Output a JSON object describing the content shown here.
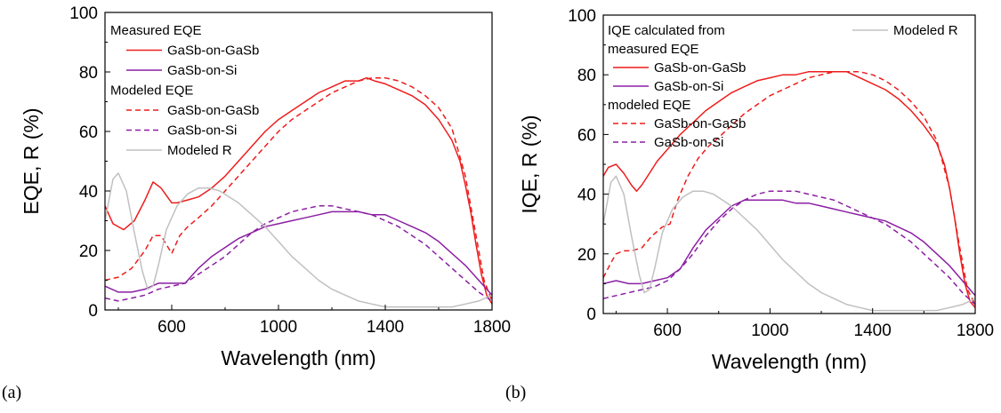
{
  "chart_data": [
    {
      "type": "line",
      "panel_label": "(a)",
      "xlabel": "Wavelength (nm)",
      "ylabel": "EQE, R (%)",
      "xlim": [
        350,
        1800
      ],
      "ylim": [
        0,
        100
      ],
      "xticks": [
        600,
        1000,
        1400,
        1800
      ],
      "yticks": [
        0,
        20,
        40,
        60,
        80,
        100
      ],
      "legend_position": "top-left",
      "legend": [
        {
          "type": "header",
          "text": "Measured EQE"
        },
        {
          "type": "entry",
          "series": 0,
          "text": "GaSb-on-GaSb"
        },
        {
          "type": "entry",
          "series": 1,
          "text": "GaSb-on-Si"
        },
        {
          "type": "header",
          "text": "Modeled EQE"
        },
        {
          "type": "entry",
          "series": 2,
          "text": "GaSb-on-GaSb"
        },
        {
          "type": "entry",
          "series": 3,
          "text": "GaSb-on-Si"
        },
        {
          "type": "entry",
          "series": 4,
          "text": "Modeled R"
        }
      ],
      "series": [
        {
          "name": "GaSb-on-GaSb",
          "color": "#ee1c1c",
          "dash": "solid",
          "x": [
            350,
            380,
            420,
            460,
            500,
            530,
            560,
            600,
            620,
            660,
            700,
            750,
            800,
            850,
            900,
            950,
            1000,
            1050,
            1100,
            1150,
            1200,
            1250,
            1300,
            1330,
            1360,
            1400,
            1450,
            1500,
            1550,
            1600,
            1650,
            1680,
            1700,
            1720,
            1740,
            1760,
            1780,
            1800
          ],
          "y": [
            35,
            29,
            27,
            30,
            37,
            43,
            41,
            36,
            36,
            37,
            38,
            41,
            45,
            50,
            55,
            60,
            64,
            67,
            70,
            73,
            75,
            77,
            77,
            78,
            77,
            76,
            74,
            72,
            69,
            64,
            57,
            50,
            42,
            33,
            22,
            12,
            5,
            2
          ]
        },
        {
          "name": "GaSb-on-Si",
          "color": "#8b1fa3",
          "dash": "solid",
          "x": [
            350,
            400,
            450,
            500,
            550,
            600,
            650,
            700,
            750,
            800,
            850,
            900,
            950,
            1000,
            1050,
            1100,
            1150,
            1200,
            1250,
            1300,
            1350,
            1400,
            1450,
            1500,
            1550,
            1600,
            1650,
            1700,
            1750,
            1800
          ],
          "y": [
            8,
            6,
            6,
            7,
            9,
            9,
            9,
            14,
            18,
            21,
            24,
            26,
            28,
            29,
            30,
            31,
            32,
            33,
            33,
            33,
            32,
            32,
            30,
            28,
            26,
            23,
            19,
            15,
            10,
            5
          ]
        },
        {
          "name": "GaSb-on-GaSb",
          "color": "#ee1c1c",
          "dash": "dashed",
          "x": [
            350,
            400,
            450,
            500,
            530,
            560,
            600,
            630,
            660,
            700,
            750,
            800,
            850,
            900,
            950,
            1000,
            1050,
            1100,
            1150,
            1200,
            1250,
            1300,
            1350,
            1400,
            1450,
            1500,
            1550,
            1600,
            1650,
            1700,
            1740,
            1770,
            1800
          ],
          "y": [
            10,
            11,
            14,
            20,
            25,
            25,
            19,
            25,
            28,
            31,
            35,
            40,
            45,
            50,
            55,
            60,
            64,
            67,
            70,
            73,
            75,
            77,
            78,
            78,
            77,
            75,
            72,
            68,
            61,
            45,
            25,
            10,
            3
          ]
        },
        {
          "name": "GaSb-on-Si",
          "color": "#8b1fa3",
          "dash": "dashed",
          "x": [
            350,
            400,
            450,
            500,
            550,
            600,
            650,
            700,
            750,
            800,
            850,
            900,
            950,
            1000,
            1050,
            1100,
            1150,
            1200,
            1250,
            1300,
            1350,
            1400,
            1450,
            1500,
            1550,
            1600,
            1650,
            1700,
            1750,
            1800
          ],
          "y": [
            4,
            3,
            4,
            5,
            7,
            8,
            9,
            12,
            15,
            18,
            22,
            26,
            29,
            31,
            33,
            34,
            35,
            35,
            34,
            33,
            32,
            30,
            28,
            25,
            22,
            18,
            14,
            10,
            6,
            3
          ]
        },
        {
          "name": "Modeled R",
          "color": "#c0c0c0",
          "dash": "solid",
          "x": [
            350,
            380,
            400,
            430,
            460,
            490,
            510,
            530,
            550,
            580,
            620,
            660,
            700,
            740,
            780,
            850,
            900,
            950,
            1000,
            1050,
            1100,
            1150,
            1200,
            1250,
            1300,
            1350,
            1400,
            1450,
            1500,
            1550,
            1600,
            1650,
            1700,
            1750,
            1800
          ],
          "y": [
            30,
            44,
            46,
            40,
            26,
            13,
            7,
            8,
            15,
            27,
            35,
            39,
            41,
            41,
            40,
            36,
            32,
            28,
            23,
            18,
            14,
            10,
            7,
            5,
            3,
            2,
            1,
            1,
            1,
            1,
            1,
            1,
            2,
            3,
            5
          ]
        }
      ]
    },
    {
      "type": "line",
      "panel_label": "(b)",
      "xlabel": "Wavelength (nm)",
      "ylabel": "IQE, R (%)",
      "xlim": [
        350,
        1800
      ],
      "ylim": [
        0,
        100
      ],
      "xticks": [
        600,
        1000,
        1400,
        1800
      ],
      "yticks": [
        0,
        20,
        40,
        60,
        80,
        100
      ],
      "legend_position": "top-left",
      "legend": [
        {
          "type": "header",
          "text": "IQE calculated from"
        },
        {
          "type": "header",
          "text": "measured EQE"
        },
        {
          "type": "entry",
          "series": 0,
          "text": "GaSb-on-GaSb"
        },
        {
          "type": "entry",
          "series": 1,
          "text": "GaSb-on-Si"
        },
        {
          "type": "header",
          "text": "modeled EQE"
        },
        {
          "type": "entry",
          "series": 2,
          "text": "GaSb-on-GaSb"
        },
        {
          "type": "entry",
          "series": 3,
          "text": "GaSb-on-Si"
        }
      ],
      "legend_right": {
        "series": 4,
        "text": "Modeled R"
      },
      "series": [
        {
          "name": "GaSb-on-GaSb",
          "color": "#ee1c1c",
          "dash": "solid",
          "x": [
            350,
            370,
            400,
            430,
            460,
            480,
            500,
            530,
            560,
            600,
            650,
            700,
            750,
            800,
            850,
            900,
            950,
            1000,
            1050,
            1100,
            1150,
            1200,
            1250,
            1300,
            1350,
            1400,
            1450,
            1500,
            1550,
            1600,
            1650,
            1680,
            1700,
            1720,
            1740,
            1760,
            1780,
            1800
          ],
          "y": [
            46,
            49,
            50,
            47,
            43,
            41,
            43,
            47,
            51,
            55,
            60,
            64,
            68,
            71,
            74,
            76,
            78,
            79,
            80,
            80,
            81,
            81,
            81,
            81,
            79,
            77,
            75,
            72,
            68,
            63,
            57,
            50,
            42,
            32,
            20,
            10,
            4,
            2
          ]
        },
        {
          "name": "GaSb-on-Si",
          "color": "#8b1fa3",
          "dash": "solid",
          "x": [
            350,
            400,
            450,
            500,
            550,
            600,
            650,
            700,
            750,
            800,
            850,
            900,
            950,
            1000,
            1050,
            1100,
            1150,
            1200,
            1250,
            1300,
            1350,
            1400,
            1450,
            1500,
            1550,
            1600,
            1650,
            1700,
            1750,
            1800
          ],
          "y": [
            10,
            11,
            10,
            10,
            11,
            12,
            15,
            22,
            28,
            32,
            36,
            38,
            38,
            38,
            38,
            37,
            37,
            36,
            35,
            34,
            33,
            32,
            31,
            29,
            27,
            24,
            20,
            16,
            11,
            6
          ]
        },
        {
          "name": "GaSb-on-GaSb",
          "color": "#ee1c1c",
          "dash": "dashed",
          "x": [
            350,
            380,
            400,
            430,
            460,
            500,
            540,
            580,
            610,
            640,
            680,
            720,
            760,
            800,
            850,
            900,
            950,
            1000,
            1050,
            1100,
            1150,
            1200,
            1250,
            1300,
            1350,
            1400,
            1450,
            1500,
            1550,
            1600,
            1650,
            1700,
            1740,
            1770,
            1800
          ],
          "y": [
            12,
            17,
            20,
            21,
            21,
            22,
            26,
            29,
            30,
            38,
            46,
            52,
            56,
            59,
            63,
            67,
            70,
            73,
            75,
            77,
            79,
            80,
            81,
            81,
            81,
            80,
            78,
            75,
            71,
            66,
            58,
            42,
            22,
            8,
            3
          ]
        },
        {
          "name": "GaSb-on-Si",
          "color": "#8b1fa3",
          "dash": "dashed",
          "x": [
            350,
            400,
            450,
            500,
            550,
            600,
            650,
            700,
            750,
            800,
            850,
            900,
            950,
            1000,
            1050,
            1100,
            1150,
            1200,
            1250,
            1300,
            1350,
            1400,
            1450,
            1500,
            1550,
            1600,
            1650,
            1700,
            1750,
            1800
          ],
          "y": [
            5,
            6,
            7,
            8,
            9,
            11,
            15,
            20,
            26,
            31,
            35,
            38,
            40,
            41,
            41,
            41,
            40,
            39,
            38,
            36,
            34,
            32,
            30,
            27,
            24,
            20,
            16,
            12,
            7,
            3
          ]
        },
        {
          "name": "Modeled R",
          "color": "#c0c0c0",
          "dash": "solid",
          "x": [
            350,
            380,
            400,
            430,
            460,
            490,
            510,
            530,
            550,
            580,
            620,
            660,
            700,
            740,
            780,
            850,
            900,
            950,
            1000,
            1050,
            1100,
            1150,
            1200,
            1250,
            1300,
            1350,
            1400,
            1450,
            1500,
            1550,
            1600,
            1650,
            1700,
            1750,
            1800
          ],
          "y": [
            30,
            44,
            46,
            40,
            26,
            13,
            7,
            8,
            15,
            27,
            35,
            39,
            41,
            41,
            40,
            36,
            32,
            28,
            23,
            18,
            14,
            10,
            7,
            5,
            3,
            2,
            1,
            1,
            1,
            1,
            1,
            1,
            2,
            3,
            5
          ]
        }
      ]
    }
  ]
}
